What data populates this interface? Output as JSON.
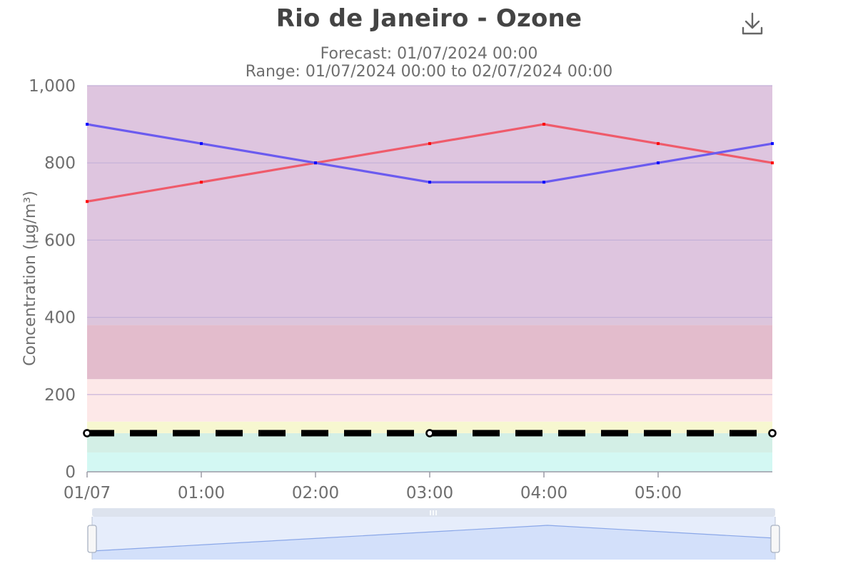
{
  "chart_data": {
    "type": "line",
    "title": "Rio de Janeiro - Ozone",
    "subtitle_lines": [
      "Forecast: 01/07/2024 00:00",
      "Range: 01/07/2024 00:00 to 02/07/2024 00:00"
    ],
    "ylabel": "Concentration (µg/m³)",
    "ylim": [
      0,
      1000
    ],
    "yticks": [
      0,
      200,
      400,
      600,
      800,
      1000
    ],
    "ytick_labels": [
      "0",
      "200",
      "400",
      "600",
      "800",
      "1,000"
    ],
    "x": [
      0,
      1,
      2,
      3,
      4,
      5,
      6
    ],
    "xlim": [
      0,
      6
    ],
    "xtick_labels": [
      "01/07",
      "01:00",
      "02:00",
      "03:00",
      "04:00",
      "05:00"
    ],
    "series": [
      {
        "color": "#ef5b6b",
        "marker_color": "#ff0000",
        "values": [
          700,
          750,
          800,
          850,
          900,
          850,
          800
        ]
      },
      {
        "color": "#6b5bef",
        "marker_color": "#0000ff",
        "values": [
          900,
          850,
          800,
          750,
          750,
          800,
          850
        ]
      }
    ],
    "threshold": {
      "value": 100,
      "color": "#000000",
      "marker_x": [
        0,
        3,
        6
      ]
    },
    "bands": [
      {
        "from": 0,
        "to": 50,
        "color": "#d3f8f3"
      },
      {
        "from": 50,
        "to": 100,
        "color": "#d3efe6"
      },
      {
        "from": 100,
        "to": 130,
        "color": "#f7f7d0"
      },
      {
        "from": 130,
        "to": 240,
        "color": "#fde8e8"
      },
      {
        "from": 240,
        "to": 380,
        "color": "#e3bccc"
      },
      {
        "from": 380,
        "to": 400,
        "color": "#dcc5dc"
      },
      {
        "from": 400,
        "to": 1000,
        "color": "#dec5df"
      }
    ],
    "grid": true,
    "navigator": {
      "values": [
        700,
        750,
        800,
        850,
        900,
        850,
        800
      ]
    }
  },
  "icons": {
    "download": "download-icon",
    "navigator_grip": "grip-icon"
  }
}
